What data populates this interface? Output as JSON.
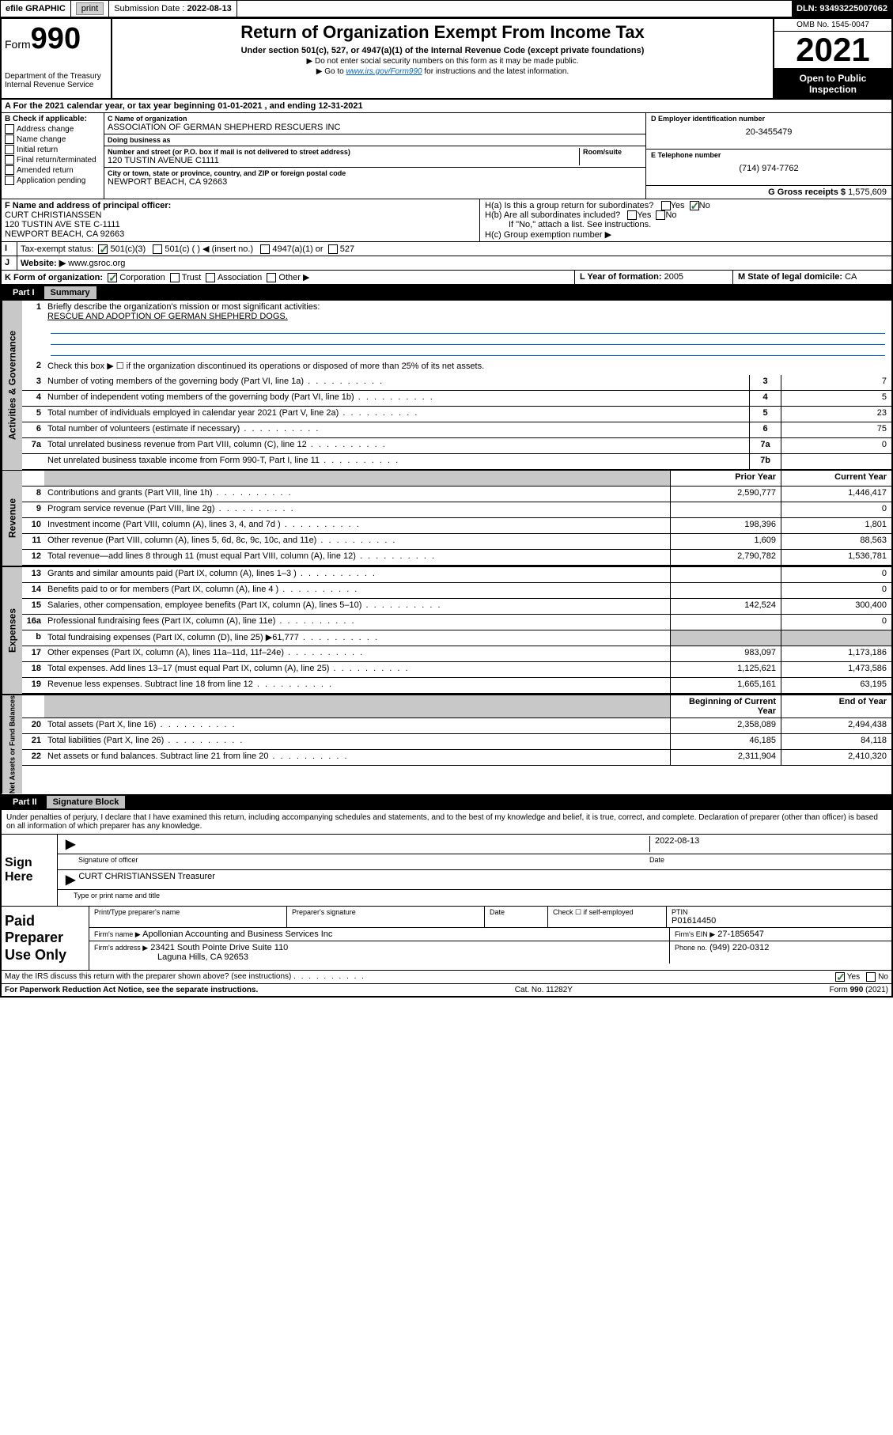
{
  "top": {
    "efile": "efile GRAPHIC",
    "print": "print",
    "sub_label": "Submission Date :",
    "sub_date": "2022-08-13",
    "dln": "DLN: 93493225007062"
  },
  "header": {
    "form_prefix": "Form",
    "form_num": "990",
    "dept": "Department of the Treasury Internal Revenue Service",
    "title": "Return of Organization Exempt From Income Tax",
    "sub": "Under section 501(c), 527, or 4947(a)(1) of the Internal Revenue Code (except private foundations)",
    "line1": "▶ Do not enter social security numbers on this form as it may be made public.",
    "line2_pre": "▶ Go to ",
    "line2_link": "www.irs.gov/Form990",
    "line2_post": " for instructions and the latest information.",
    "omb": "OMB No. 1545-0047",
    "year": "2021",
    "open": "Open to Public Inspection"
  },
  "a": {
    "text": "For the 2021 calendar year, or tax year beginning 01-01-2021    , and ending 12-31-2021"
  },
  "b": {
    "title": "B Check if applicable:",
    "opts": [
      "Address change",
      "Name change",
      "Initial return",
      "Final return/terminated",
      "Amended return",
      "Application pending"
    ]
  },
  "c": {
    "name_lbl": "C Name of organization",
    "name": "ASSOCIATION OF GERMAN SHEPHERD RESCUERS INC",
    "dba_lbl": "Doing business as",
    "addr_lbl": "Number and street (or P.O. box if mail is not delivered to street address)",
    "room_lbl": "Room/suite",
    "addr": "120 TUSTIN AVENUE C1111",
    "city_lbl": "City or town, state or province, country, and ZIP or foreign postal code",
    "city": "NEWPORT BEACH, CA  92663"
  },
  "d": {
    "lbl": "D Employer identification number",
    "val": "20-3455479"
  },
  "e": {
    "lbl": "E Telephone number",
    "val": "(714) 974-7762"
  },
  "g": {
    "lbl": "G Gross receipts $",
    "val": "1,575,609"
  },
  "f": {
    "lbl": "F Name and address of principal officer:",
    "name": "CURT CHRISTIANSSEN",
    "addr1": "120 TUSTIN AVE STE C-1111",
    "addr2": "NEWPORT BEACH, CA  92663"
  },
  "h": {
    "a": "H(a)  Is this a group return for subordinates?",
    "b": "H(b)  Are all subordinates included?",
    "b2": "If \"No,\" attach a list. See instructions.",
    "c": "H(c)  Group exemption number ▶"
  },
  "i": {
    "lbl": "Tax-exempt status:",
    "o1": "501(c)(3)",
    "o2": "501(c) (  ) ◀ (insert no.)",
    "o3": "4947(a)(1) or",
    "o4": "527"
  },
  "j": {
    "lbl": "Website: ▶",
    "val": "www.gsroc.org"
  },
  "k": {
    "lbl": "K Form of organization:",
    "opts": [
      "Corporation",
      "Trust",
      "Association",
      "Other ▶"
    ]
  },
  "l": {
    "lbl": "L Year of formation:",
    "val": "2005"
  },
  "m": {
    "lbl": "M State of legal domicile:",
    "val": "CA"
  },
  "part1": {
    "label": "Part I",
    "title": "Summary",
    "q1": "Briefly describe the organization's mission or most significant activities:",
    "mission": "RESCUE AND ADOPTION OF GERMAN SHEPHERD DOGS.",
    "q2": "Check this box ▶ ☐  if the organization discontinued its operations or disposed of more than 25% of its net assets.",
    "rows_gov": [
      {
        "n": "3",
        "d": "Number of voting members of the governing body (Part VI, line 1a)",
        "box": "3",
        "v": "7"
      },
      {
        "n": "4",
        "d": "Number of independent voting members of the governing body (Part VI, line 1b)",
        "box": "4",
        "v": "5"
      },
      {
        "n": "5",
        "d": "Total number of individuals employed in calendar year 2021 (Part V, line 2a)",
        "box": "5",
        "v": "23"
      },
      {
        "n": "6",
        "d": "Total number of volunteers (estimate if necessary)",
        "box": "6",
        "v": "75"
      },
      {
        "n": "7a",
        "d": "Total unrelated business revenue from Part VIII, column (C), line 12",
        "box": "7a",
        "v": "0"
      },
      {
        "n": "",
        "d": "Net unrelated business taxable income from Form 990-T, Part I, line 11",
        "box": "7b",
        "v": ""
      }
    ],
    "col_prior": "Prior Year",
    "col_curr": "Current Year",
    "rows_rev": [
      {
        "n": "8",
        "d": "Contributions and grants (Part VIII, line 1h)",
        "p": "2,590,777",
        "c": "1,446,417"
      },
      {
        "n": "9",
        "d": "Program service revenue (Part VIII, line 2g)",
        "p": "",
        "c": "0"
      },
      {
        "n": "10",
        "d": "Investment income (Part VIII, column (A), lines 3, 4, and 7d )",
        "p": "198,396",
        "c": "1,801"
      },
      {
        "n": "11",
        "d": "Other revenue (Part VIII, column (A), lines 5, 6d, 8c, 9c, 10c, and 11e)",
        "p": "1,609",
        "c": "88,563"
      },
      {
        "n": "12",
        "d": "Total revenue—add lines 8 through 11 (must equal Part VIII, column (A), line 12)",
        "p": "2,790,782",
        "c": "1,536,781"
      }
    ],
    "rows_exp": [
      {
        "n": "13",
        "d": "Grants and similar amounts paid (Part IX, column (A), lines 1–3 )",
        "p": "",
        "c": "0"
      },
      {
        "n": "14",
        "d": "Benefits paid to or for members (Part IX, column (A), line 4 )",
        "p": "",
        "c": "0"
      },
      {
        "n": "15",
        "d": "Salaries, other compensation, employee benefits (Part IX, column (A), lines 5–10)",
        "p": "142,524",
        "c": "300,400"
      },
      {
        "n": "16a",
        "d": "Professional fundraising fees (Part IX, column (A), line 11e)",
        "p": "",
        "c": "0"
      },
      {
        "n": "b",
        "d": "Total fundraising expenses (Part IX, column (D), line 25) ▶61,777",
        "p": "shaded",
        "c": "shaded"
      },
      {
        "n": "17",
        "d": "Other expenses (Part IX, column (A), lines 11a–11d, 11f–24e)",
        "p": "983,097",
        "c": "1,173,186"
      },
      {
        "n": "18",
        "d": "Total expenses. Add lines 13–17 (must equal Part IX, column (A), line 25)",
        "p": "1,125,621",
        "c": "1,473,586"
      },
      {
        "n": "19",
        "d": "Revenue less expenses. Subtract line 18 from line 12",
        "p": "1,665,161",
        "c": "63,195"
      }
    ],
    "col_beg": "Beginning of Current Year",
    "col_end": "End of Year",
    "rows_net": [
      {
        "n": "20",
        "d": "Total assets (Part X, line 16)",
        "p": "2,358,089",
        "c": "2,494,438"
      },
      {
        "n": "21",
        "d": "Total liabilities (Part X, line 26)",
        "p": "46,185",
        "c": "84,118"
      },
      {
        "n": "22",
        "d": "Net assets or fund balances. Subtract line 21 from line 20",
        "p": "2,311,904",
        "c": "2,410,320"
      }
    ],
    "tabs": {
      "gov": "Activities & Governance",
      "rev": "Revenue",
      "exp": "Expenses",
      "net": "Net Assets or Fund Balances"
    }
  },
  "part2": {
    "label": "Part II",
    "title": "Signature Block",
    "decl": "Under penalties of perjury, I declare that I have examined this return, including accompanying schedules and statements, and to the best of my knowledge and belief, it is true, correct, and complete. Declaration of preparer (other than officer) is based on all information of which preparer has any knowledge.",
    "sign_here": "Sign Here",
    "sig_officer": "Signature of officer",
    "date_lbl": "Date",
    "sig_date": "2022-08-13",
    "officer": "CURT CHRISTIANSSEN Treasurer",
    "type_name": "Type or print name and title",
    "paid": "Paid Preparer Use Only",
    "prep_name_lbl": "Print/Type preparer's name",
    "prep_sig_lbl": "Preparer's signature",
    "check_self": "Check ☐ if self-employed",
    "ptin_lbl": "PTIN",
    "ptin": "P01614450",
    "firm_name_lbl": "Firm's name    ▶",
    "firm_name": "Apollonian Accounting and Business Services Inc",
    "firm_ein_lbl": "Firm's EIN ▶",
    "firm_ein": "27-1856547",
    "firm_addr_lbl": "Firm's address ▶",
    "firm_addr1": "23421 South Pointe Drive Suite 110",
    "firm_addr2": "Laguna Hills, CA  92653",
    "phone_lbl": "Phone no.",
    "phone": "(949) 220-0312",
    "discuss": "May the IRS discuss this return with the preparer shown above? (see instructions)"
  },
  "footer": {
    "left": "For Paperwork Reduction Act Notice, see the separate instructions.",
    "mid": "Cat. No. 11282Y",
    "right_pre": "Form ",
    "right_num": "990",
    "right_post": " (2021)"
  },
  "yes": "Yes",
  "no": "No"
}
